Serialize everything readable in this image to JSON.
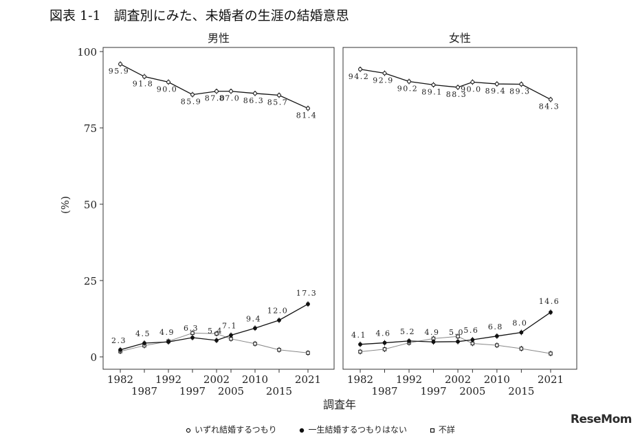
{
  "figure_title": "図表 1-1　調査別にみた、未婚者の生涯の結婚意思",
  "watermark": "ReseMom",
  "chart_data": {
    "type": "line",
    "ylabel": "(%)",
    "xlabel": "調査年",
    "ylim": [
      0,
      100
    ],
    "yticks": [
      0,
      25,
      50,
      75,
      100
    ],
    "x": [
      1982,
      1987,
      1992,
      1997,
      2002,
      2005,
      2010,
      2015,
      2021
    ],
    "legend": {
      "placement": "bottom",
      "entries": [
        {
          "key": "marry",
          "label": "いずれ結婚するつもり",
          "marker": "open-circle"
        },
        {
          "key": "never",
          "label": "一生結婚するつもりはない",
          "marker": "filled-circle"
        },
        {
          "key": "unknown",
          "label": "不詳",
          "marker": "open-square"
        }
      ]
    },
    "panels": [
      {
        "title": "男性",
        "series": [
          {
            "key": "marry",
            "values": [
              95.9,
              91.8,
              90.0,
              85.9,
              87.0,
              87.0,
              86.3,
              85.7,
              81.4
            ],
            "labels": [
              "95.9",
              "91.8",
              "90.0",
              "85.9",
              "87.0",
              "87.0",
              "86.3",
              "85.7",
              "81.4"
            ]
          },
          {
            "key": "never",
            "values": [
              2.3,
              4.5,
              4.9,
              6.3,
              5.4,
              7.1,
              9.4,
              12.0,
              17.3
            ],
            "labels": [
              "2.3",
              "4.5",
              "4.9",
              "6.3",
              "5.4",
              "7.1",
              "9.4",
              "12.0",
              "17.3"
            ]
          },
          {
            "key": "unknown",
            "values": [
              1.8,
              3.7,
              5.1,
              7.8,
              7.6,
              5.9,
              4.3,
              2.3,
              1.3
            ],
            "labels": []
          }
        ]
      },
      {
        "title": "女性",
        "series": [
          {
            "key": "marry",
            "values": [
              94.2,
              92.9,
              90.2,
              89.1,
              88.3,
              90.0,
              89.4,
              89.3,
              84.3
            ],
            "labels": [
              "94.2",
              "92.9",
              "90.2",
              "89.1",
              "88.3",
              "90.0",
              "89.4",
              "89.3",
              "84.3"
            ]
          },
          {
            "key": "never",
            "values": [
              4.1,
              4.6,
              5.2,
              4.9,
              5.0,
              5.6,
              6.8,
              8.0,
              14.6
            ],
            "labels": [
              "4.1",
              "4.6",
              "5.2",
              "4.9",
              "5.0",
              "5.6",
              "6.8",
              "8.0",
              "14.6"
            ]
          },
          {
            "key": "unknown",
            "values": [
              1.7,
              2.5,
              4.6,
              6.0,
              6.7,
              4.4,
              3.8,
              2.7,
              1.1
            ],
            "labels": []
          }
        ]
      }
    ],
    "colors": {
      "never": "#111111",
      "marry": "#111111",
      "unknown": "#888888",
      "frame": "#333333"
    }
  }
}
